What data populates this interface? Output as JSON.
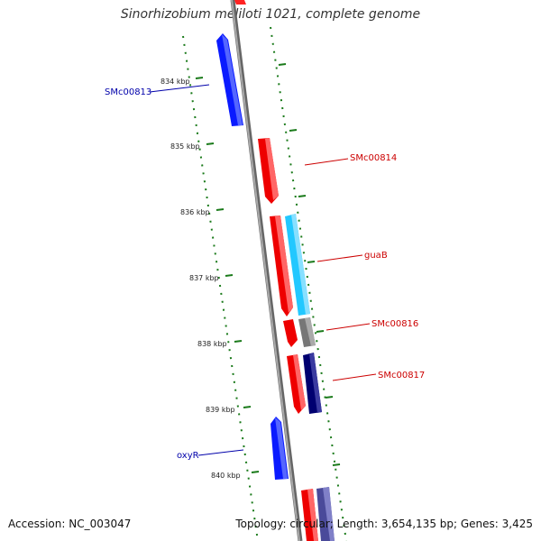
{
  "title": "Sinorhizobium meliloti 1021, complete genome",
  "footer": {
    "accession": "Accession: NC_003047",
    "summary": "Topology: circular; Length: 3,654,135 bp; Genes: 3,425"
  },
  "ticks": [
    "834 kbp",
    "835 kbp",
    "836 kbp",
    "837 kbp",
    "838 kbp",
    "839 kbp",
    "840 kbp"
  ],
  "labels": [
    {
      "name": "SMc00813",
      "strand": "-"
    },
    {
      "name": "SMc00814",
      "strand": "+"
    },
    {
      "name": "guaB",
      "strand": "+"
    },
    {
      "name": "SMc00816",
      "strand": "+"
    },
    {
      "name": "SMc00817",
      "strand": "+"
    },
    {
      "name": "oxyR",
      "strand": "-"
    }
  ],
  "colors": {
    "forward_cds": "#ff0000",
    "reverse_cds": "#0000ff",
    "forward_feature_cyan": "#22c8ff",
    "forward_feature_gray": "#777777",
    "forward_feature_navy": "#000070",
    "backbone": "#888888",
    "gc_skew": "#1a7a1a",
    "forward_label": "#cc0000",
    "reverse_label": "#0000aa"
  }
}
